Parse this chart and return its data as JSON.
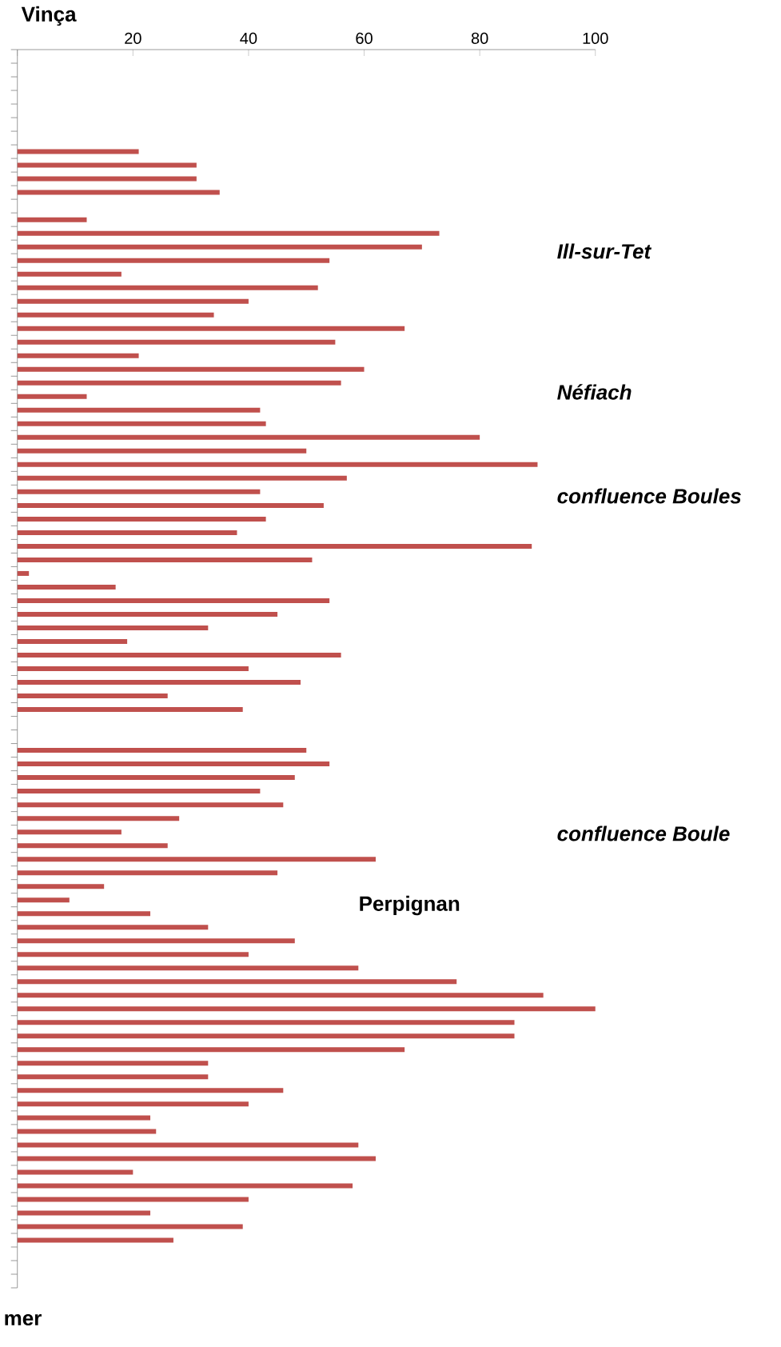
{
  "chart_data": {
    "type": "bar",
    "orientation": "horizontal",
    "color": "#c0504d",
    "categories": [
      null,
      null,
      null,
      null,
      null,
      null,
      null,
      null,
      null,
      null,
      null,
      null,
      null,
      null,
      null,
      null,
      null,
      null,
      null,
      null,
      null,
      null,
      null,
      null,
      null,
      null,
      null,
      null,
      null,
      null,
      null,
      null,
      null,
      null,
      null,
      null,
      null,
      null,
      null,
      null,
      null,
      null,
      null,
      null,
      null,
      null,
      null,
      null,
      null,
      null,
      null,
      null,
      null,
      null,
      null,
      null,
      null,
      null,
      null,
      null,
      null,
      null,
      null,
      null,
      null,
      null,
      null,
      null,
      null,
      null,
      null,
      null,
      null,
      null,
      null,
      null,
      null,
      null,
      null,
      null,
      null,
      null,
      null,
      null,
      null,
      null,
      null,
      null,
      null,
      null,
      null
    ],
    "values": [
      null,
      null,
      null,
      null,
      null,
      null,
      null,
      21,
      31,
      31,
      35,
      null,
      12,
      73,
      70,
      54,
      18,
      52,
      40,
      34,
      67,
      55,
      21,
      60,
      56,
      12,
      42,
      43,
      80,
      50,
      90,
      57,
      42,
      53,
      43,
      38,
      89,
      51,
      2,
      17,
      54,
      45,
      33,
      19,
      56,
      40,
      49,
      26,
      39,
      null,
      null,
      50,
      54,
      48,
      42,
      46,
      28,
      18,
      26,
      62,
      45,
      15,
      9,
      23,
      33,
      48,
      40,
      59,
      76,
      91,
      100,
      86,
      86,
      67,
      33,
      33,
      46,
      40,
      23,
      24,
      59,
      62,
      20,
      58,
      40,
      23,
      39,
      27,
      null,
      null,
      null
    ],
    "xlim": [
      0,
      100
    ],
    "xticks": [
      {
        "value": 0,
        "label": null
      },
      20,
      40,
      60,
      80,
      100
    ],
    "tick_labels": "x",
    "annotations": [
      "Vinça",
      "Ill-sur-Tet",
      "Néfiach",
      "confluence Boules",
      "confluence Boule",
      "Perpignan",
      "mer"
    ]
  }
}
